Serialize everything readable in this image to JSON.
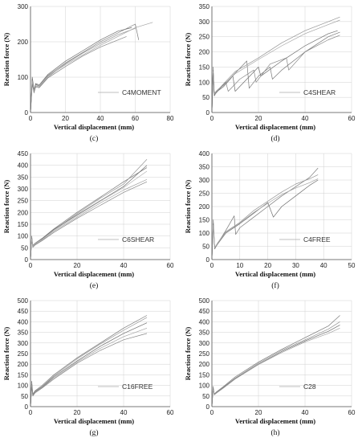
{
  "chart_data": [
    {
      "type": "line",
      "caption": "(c)",
      "legend": "C4MOMENT",
      "xlabel": "Vertical displacement (mm)",
      "ylabel": "Reaction force (N)",
      "xlim": [
        0,
        80
      ],
      "ylim": [
        0,
        300
      ],
      "xticks": [
        0,
        20,
        40,
        60,
        80
      ],
      "yticks": [
        0,
        100,
        200,
        300
      ],
      "grid": true,
      "legend_position": "bottom-right",
      "series": [
        {
          "x": [
            0,
            1,
            2,
            3,
            5,
            10,
            20,
            30,
            40,
            50,
            60,
            62
          ],
          "y": [
            0,
            95,
            60,
            80,
            75,
            105,
            140,
            170,
            200,
            225,
            250,
            205
          ]
        },
        {
          "x": [
            0,
            1,
            2,
            3,
            5,
            10,
            20,
            30,
            40,
            50,
            60
          ],
          "y": [
            0,
            85,
            55,
            75,
            72,
            100,
            138,
            168,
            195,
            220,
            238
          ]
        },
        {
          "x": [
            0,
            1,
            2,
            3,
            5,
            10,
            20,
            30,
            40,
            50,
            58
          ],
          "y": [
            0,
            100,
            65,
            82,
            78,
            108,
            145,
            175,
            205,
            230,
            240
          ]
        },
        {
          "x": [
            0,
            1,
            2,
            3,
            5,
            10,
            20,
            30,
            40,
            50,
            60,
            70
          ],
          "y": [
            0,
            90,
            62,
            78,
            74,
            103,
            135,
            163,
            190,
            215,
            240,
            255
          ]
        },
        {
          "x": [
            0,
            1,
            2,
            3,
            5,
            10,
            20,
            30,
            40,
            50,
            55
          ],
          "y": [
            0,
            80,
            58,
            72,
            70,
            98,
            130,
            160,
            185,
            205,
            215
          ]
        }
      ]
    },
    {
      "type": "line",
      "caption": "(d)",
      "legend": "C4SHEAR",
      "xlabel": "Vertical displacement (mm)",
      "ylabel": "Reaction force (N)",
      "xlim": [
        0,
        60
      ],
      "ylim": [
        0,
        350
      ],
      "xticks": [
        0,
        20,
        40,
        60
      ],
      "yticks": [
        0,
        50,
        100,
        150,
        200,
        250,
        300,
        350
      ],
      "grid": true,
      "legend_position": "bottom-right",
      "series": [
        {
          "x": [
            0,
            0.5,
            1,
            2,
            5,
            10,
            15,
            16,
            20,
            25,
            26,
            30,
            40,
            50,
            55
          ],
          "y": [
            0,
            150,
            60,
            70,
            90,
            130,
            170,
            80,
            120,
            150,
            110,
            140,
            200,
            250,
            265
          ]
        },
        {
          "x": [
            0,
            0.5,
            1,
            2,
            5,
            10,
            20,
            30,
            40,
            50,
            55
          ],
          "y": [
            0,
            145,
            65,
            70,
            95,
            135,
            180,
            230,
            270,
            300,
            315
          ]
        },
        {
          "x": [
            0,
            0.5,
            1,
            2,
            5,
            9,
            10,
            15,
            20,
            21,
            30,
            40,
            50,
            54
          ],
          "y": [
            0,
            140,
            55,
            68,
            85,
            120,
            70,
            110,
            150,
            120,
            170,
            220,
            260,
            270
          ]
        },
        {
          "x": [
            0,
            0.5,
            1,
            2,
            5,
            10,
            20,
            30,
            40,
            50,
            55
          ],
          "y": [
            0,
            135,
            60,
            72,
            92,
            128,
            175,
            220,
            260,
            290,
            305
          ]
        },
        {
          "x": [
            0,
            0.5,
            1,
            2,
            6,
            7,
            12,
            18,
            19,
            25,
            32,
            33,
            40,
            50,
            55
          ],
          "y": [
            0,
            130,
            58,
            66,
            100,
            70,
            110,
            140,
            100,
            160,
            180,
            140,
            200,
            240,
            255
          ]
        }
      ]
    },
    {
      "type": "line",
      "caption": "(e)",
      "legend": "C6SHEAR",
      "xlabel": "Vertical displacement (mm)",
      "ylabel": "Reaction force (N)",
      "xlim": [
        0,
        60
      ],
      "ylim": [
        0,
        450
      ],
      "xticks": [
        0,
        20,
        40,
        60
      ],
      "yticks": [
        0,
        50,
        100,
        150,
        200,
        250,
        300,
        350,
        400,
        450
      ],
      "grid": true,
      "legend_position": "bottom-right",
      "series": [
        {
          "x": [
            0,
            0.5,
            1,
            2,
            5,
            10,
            20,
            30,
            40,
            50
          ],
          "y": [
            0,
            100,
            60,
            70,
            90,
            130,
            200,
            265,
            330,
            390
          ]
        },
        {
          "x": [
            0,
            0.5,
            1,
            2,
            5,
            10,
            20,
            30,
            40,
            50
          ],
          "y": [
            0,
            95,
            55,
            68,
            85,
            125,
            195,
            260,
            320,
            425
          ]
        },
        {
          "x": [
            0,
            0.5,
            1,
            2,
            5,
            10,
            20,
            30,
            40,
            50
          ],
          "y": [
            0,
            90,
            58,
            66,
            88,
            128,
            190,
            250,
            310,
            400
          ]
        },
        {
          "x": [
            0,
            0.5,
            1,
            2,
            5,
            10,
            20,
            30,
            40,
            50
          ],
          "y": [
            0,
            85,
            56,
            64,
            82,
            120,
            180,
            240,
            295,
            340
          ]
        },
        {
          "x": [
            0,
            0.5,
            1,
            2,
            5,
            10,
            20,
            30,
            40,
            50
          ],
          "y": [
            0,
            80,
            52,
            62,
            80,
            115,
            175,
            230,
            285,
            330
          ]
        },
        {
          "x": [
            0,
            0.5,
            1,
            2,
            5,
            10,
            20,
            30,
            40,
            50
          ],
          "y": [
            0,
            88,
            57,
            67,
            86,
            124,
            186,
            248,
            305,
            375
          ]
        }
      ]
    },
    {
      "type": "line",
      "caption": "(f)",
      "legend": "C4FREE",
      "xlabel": "Vertical displacement (mm)",
      "ylabel": "Reaction force (N)",
      "xlim": [
        0,
        50
      ],
      "ylim": [
        0,
        400
      ],
      "xticks": [
        0,
        10,
        20,
        30,
        40,
        50
      ],
      "yticks": [
        0,
        50,
        100,
        150,
        200,
        250,
        300,
        350,
        400
      ],
      "grid": true,
      "legend_position": "bottom-right",
      "series": [
        {
          "x": [
            0,
            0.5,
            1,
            2,
            5,
            8,
            8.5,
            10,
            15,
            20,
            25,
            30,
            35,
            38
          ],
          "y": [
            0,
            150,
            40,
            60,
            110,
            165,
            95,
            120,
            160,
            200,
            240,
            275,
            310,
            345
          ]
        },
        {
          "x": [
            0,
            0.5,
            1,
            2,
            5,
            10,
            15,
            20,
            25,
            30,
            35,
            38
          ],
          "y": [
            0,
            140,
            45,
            62,
            105,
            140,
            185,
            220,
            255,
            285,
            305,
            320
          ]
        },
        {
          "x": [
            0,
            0.5,
            1,
            2,
            5,
            10,
            15,
            20,
            22,
            25,
            30,
            35,
            38
          ],
          "y": [
            0,
            135,
            42,
            58,
            100,
            135,
            175,
            215,
            160,
            200,
            240,
            280,
            300
          ]
        },
        {
          "x": [
            0,
            0.5,
            1,
            2,
            5,
            10,
            15,
            20,
            25,
            30,
            35,
            38
          ],
          "y": [
            0,
            130,
            44,
            60,
            102,
            138,
            178,
            212,
            245,
            270,
            290,
            305
          ]
        }
      ]
    },
    {
      "type": "line",
      "caption": "(g)",
      "legend": "C16FREE",
      "xlabel": "Vertical displacement (mm)",
      "ylabel": "Reaction force (N)",
      "xlim": [
        0,
        60
      ],
      "ylim": [
        0,
        500
      ],
      "xticks": [
        0,
        20,
        40,
        60
      ],
      "yticks": [
        0,
        50,
        100,
        150,
        200,
        250,
        300,
        350,
        400,
        450,
        500
      ],
      "grid": true,
      "legend_position": "bottom-right",
      "series": [
        {
          "x": [
            0,
            0.5,
            1,
            2,
            5,
            10,
            20,
            30,
            40,
            50
          ],
          "y": [
            0,
            120,
            60,
            75,
            100,
            150,
            230,
            300,
            370,
            430
          ]
        },
        {
          "x": [
            0,
            0.5,
            1,
            2,
            5,
            10,
            20,
            30,
            40,
            50
          ],
          "y": [
            0,
            110,
            58,
            72,
            95,
            145,
            225,
            295,
            360,
            420
          ]
        },
        {
          "x": [
            0,
            0.5,
            1,
            2,
            5,
            10,
            20,
            30,
            40,
            50
          ],
          "y": [
            0,
            105,
            55,
            70,
            92,
            140,
            215,
            285,
            345,
            395
          ]
        },
        {
          "x": [
            0,
            0.5,
            1,
            2,
            5,
            10,
            20,
            30,
            40,
            50
          ],
          "y": [
            0,
            100,
            52,
            68,
            90,
            135,
            210,
            275,
            330,
            370
          ]
        },
        {
          "x": [
            0,
            0.5,
            1,
            2,
            5,
            10,
            20,
            30,
            40,
            50
          ],
          "y": [
            0,
            95,
            50,
            65,
            88,
            130,
            205,
            265,
            315,
            345
          ]
        }
      ]
    },
    {
      "type": "line",
      "caption": "(h)",
      "legend": "C28",
      "xlabel": "Vertical displacement (mm)",
      "ylabel": "Reaction force (N)",
      "xlim": [
        0,
        60
      ],
      "ylim": [
        0,
        500
      ],
      "xticks": [
        0,
        20,
        40,
        60
      ],
      "yticks": [
        0,
        50,
        100,
        150,
        200,
        250,
        300,
        350,
        400,
        450,
        500
      ],
      "grid": true,
      "legend_position": "bottom-right",
      "series": [
        {
          "x": [
            0,
            0.5,
            1,
            2,
            5,
            10,
            20,
            30,
            40,
            50,
            55
          ],
          "y": [
            0,
            95,
            60,
            70,
            95,
            140,
            210,
            270,
            325,
            380,
            430
          ]
        },
        {
          "x": [
            0,
            0.5,
            1,
            2,
            5,
            10,
            20,
            30,
            40,
            50,
            55
          ],
          "y": [
            0,
            90,
            58,
            68,
            92,
            135,
            205,
            265,
            315,
            365,
            400
          ]
        },
        {
          "x": [
            0,
            0.5,
            1,
            2,
            5,
            10,
            20,
            30,
            40,
            50,
            55
          ],
          "y": [
            0,
            85,
            56,
            66,
            90,
            132,
            200,
            260,
            310,
            355,
            385
          ]
        },
        {
          "x": [
            0,
            0.5,
            1,
            2,
            5,
            10,
            20,
            30,
            40,
            50,
            55
          ],
          "y": [
            0,
            80,
            55,
            64,
            88,
            130,
            198,
            255,
            305,
            345,
            370
          ]
        }
      ]
    }
  ]
}
